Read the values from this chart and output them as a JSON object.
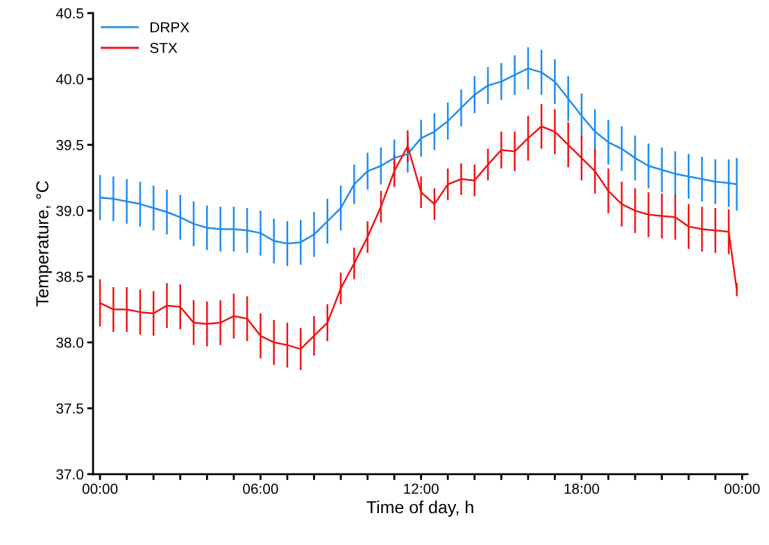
{
  "chart_data": {
    "type": "line",
    "xlabel": "Time of day, h",
    "ylabel": "Temperature, °C",
    "x": [
      0,
      0.5,
      1,
      1.5,
      2,
      2.5,
      3,
      3.5,
      4,
      4.5,
      5,
      5.5,
      6,
      6.5,
      7,
      7.5,
      8,
      8.5,
      9,
      9.5,
      10,
      10.5,
      11,
      11.5,
      12,
      12.5,
      13,
      13.5,
      14,
      14.5,
      15,
      15.5,
      16,
      16.5,
      17,
      17.5,
      18,
      18.5,
      19,
      19.5,
      20,
      20.5,
      21,
      21.5,
      22,
      22.5,
      23,
      23.5,
      23.8
    ],
    "series": [
      {
        "name": "DRPX",
        "color": "#1e8cf0",
        "values": [
          39.1,
          39.09,
          39.07,
          39.05,
          39.02,
          38.99,
          38.95,
          38.9,
          38.87,
          38.86,
          38.86,
          38.85,
          38.83,
          38.77,
          38.75,
          38.76,
          38.82,
          38.92,
          39.02,
          39.2,
          39.3,
          39.34,
          39.4,
          39.43,
          39.55,
          39.6,
          39.68,
          39.78,
          39.88,
          39.95,
          39.98,
          40.03,
          40.08,
          40.05,
          39.98,
          39.85,
          39.72,
          39.6,
          39.52,
          39.47,
          39.4,
          39.34,
          39.31,
          39.28,
          39.26,
          39.24,
          39.22,
          39.21,
          39.2
        ],
        "errors": [
          0.17,
          0.17,
          0.17,
          0.17,
          0.17,
          0.17,
          0.17,
          0.17,
          0.17,
          0.17,
          0.17,
          0.17,
          0.17,
          0.17,
          0.17,
          0.17,
          0.17,
          0.17,
          0.17,
          0.15,
          0.14,
          0.14,
          0.14,
          0.14,
          0.14,
          0.14,
          0.14,
          0.14,
          0.14,
          0.14,
          0.14,
          0.15,
          0.16,
          0.17,
          0.17,
          0.17,
          0.17,
          0.17,
          0.17,
          0.17,
          0.17,
          0.17,
          0.17,
          0.17,
          0.17,
          0.17,
          0.17,
          0.18,
          0.2
        ]
      },
      {
        "name": "STX",
        "color": "#f01414",
        "values": [
          38.3,
          38.25,
          38.25,
          38.23,
          38.22,
          38.28,
          38.27,
          38.15,
          38.14,
          38.15,
          38.2,
          38.18,
          38.05,
          38.0,
          37.98,
          37.95,
          38.05,
          38.15,
          38.41,
          38.6,
          38.8,
          39.03,
          39.3,
          39.49,
          39.14,
          39.05,
          39.2,
          39.24,
          39.23,
          39.35,
          39.46,
          39.45,
          39.55,
          39.64,
          39.6,
          39.5,
          39.4,
          39.3,
          39.15,
          39.05,
          39.0,
          38.97,
          38.96,
          38.95,
          38.88,
          38.86,
          38.85,
          38.84,
          38.4
        ],
        "errors": [
          0.18,
          0.17,
          0.17,
          0.17,
          0.17,
          0.17,
          0.17,
          0.17,
          0.17,
          0.17,
          0.17,
          0.17,
          0.17,
          0.17,
          0.17,
          0.16,
          0.15,
          0.14,
          0.12,
          0.12,
          0.12,
          0.12,
          0.12,
          0.12,
          0.12,
          0.12,
          0.12,
          0.12,
          0.12,
          0.12,
          0.14,
          0.15,
          0.17,
          0.17,
          0.17,
          0.17,
          0.17,
          0.17,
          0.17,
          0.17,
          0.17,
          0.17,
          0.17,
          0.17,
          0.17,
          0.17,
          0.17,
          0.17,
          0.05
        ]
      }
    ],
    "xlim": [
      -0.26,
      24.2
    ],
    "xticks": [
      {
        "value": 0,
        "label": "00:00"
      },
      {
        "value": 1,
        "label": null
      },
      {
        "value": 2,
        "label": null
      },
      {
        "value": 3,
        "label": null
      },
      {
        "value": 4,
        "label": null
      },
      {
        "value": 5,
        "label": null
      },
      {
        "value": 6,
        "label": "06:00"
      },
      {
        "value": 7,
        "label": null
      },
      {
        "value": 8,
        "label": null
      },
      {
        "value": 9,
        "label": null
      },
      {
        "value": 10,
        "label": null
      },
      {
        "value": 11,
        "label": null
      },
      {
        "value": 12,
        "label": "12:00"
      },
      {
        "value": 13,
        "label": null
      },
      {
        "value": 14,
        "label": null
      },
      {
        "value": 15,
        "label": null
      },
      {
        "value": 16,
        "label": null
      },
      {
        "value": 17,
        "label": null
      },
      {
        "value": 18,
        "label": "18:00"
      },
      {
        "value": 19,
        "label": null
      },
      {
        "value": 20,
        "label": null
      },
      {
        "value": 21,
        "label": null
      },
      {
        "value": 22,
        "label": null
      },
      {
        "value": 23,
        "label": null
      },
      {
        "value": 24,
        "label": "00:00"
      }
    ],
    "ylim": [
      37.0,
      40.5
    ],
    "yticks": [
      {
        "value": 37,
        "label": "37.0"
      },
      37.5,
      {
        "value": 38,
        "label": "38.0"
      },
      38.5,
      {
        "value": 39,
        "label": "39.0"
      },
      39.5,
      {
        "value": 40,
        "label": "40.0"
      },
      40.5
    ],
    "legend": "top left",
    "grid": false,
    "marker": "none",
    "line_style": "solid"
  }
}
